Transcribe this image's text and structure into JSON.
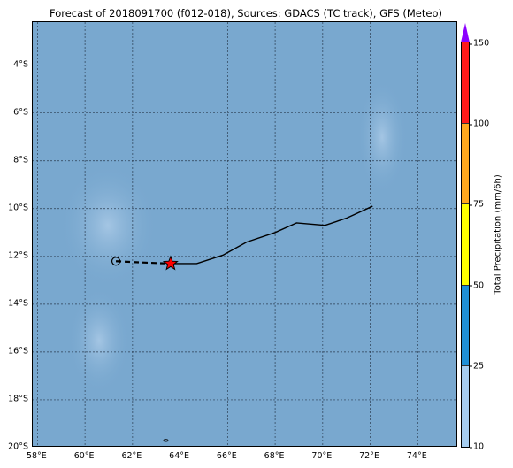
{
  "title": "Forecast of 2018091700 (f012-018), Sources: GDACS (TC track), GFS (Meteo)",
  "map": {
    "lon_range": [
      57.8,
      75.7
    ],
    "lat_range": [
      -20.0,
      -2.2
    ],
    "lat_ticks": [
      {
        "value": -4,
        "label": "4°S"
      },
      {
        "value": -6,
        "label": "6°S"
      },
      {
        "value": -8,
        "label": "8°S"
      },
      {
        "value": -10,
        "label": "10°S"
      },
      {
        "value": -12,
        "label": "12°S"
      },
      {
        "value": -14,
        "label": "14°S"
      },
      {
        "value": -16,
        "label": "16°S"
      },
      {
        "value": -18,
        "label": "18°S"
      },
      {
        "value": -20,
        "label": "20°S"
      }
    ],
    "lon_ticks": [
      {
        "value": 58,
        "label": "58°E"
      },
      {
        "value": 60,
        "label": "60°E"
      },
      {
        "value": 62,
        "label": "62°E"
      },
      {
        "value": 64,
        "label": "64°E"
      },
      {
        "value": 66,
        "label": "66°E"
      },
      {
        "value": 68,
        "label": "68°E"
      },
      {
        "value": 70,
        "label": "70°E"
      },
      {
        "value": 72,
        "label": "72°E"
      },
      {
        "value": 74,
        "label": "74°E"
      }
    ],
    "ocean_color": "#79a8cf",
    "past_track": [
      [
        61.3,
        -12.2
      ],
      [
        62.3,
        -12.25
      ],
      [
        63.6,
        -12.3
      ]
    ],
    "forecast_track": [
      [
        63.6,
        -12.3
      ],
      [
        64.7,
        -12.3
      ],
      [
        65.8,
        -11.95
      ],
      [
        66.8,
        -11.4
      ],
      [
        68.0,
        -11.0
      ],
      [
        68.9,
        -10.6
      ],
      [
        70.1,
        -10.7
      ],
      [
        71.0,
        -10.4
      ],
      [
        72.1,
        -9.9
      ]
    ],
    "start_position": [
      61.3,
      -12.2
    ],
    "current_position": [
      63.6,
      -12.3
    ],
    "track_color": "#000000",
    "marker_color": "#ff0000",
    "island": [
      63.4,
      -19.7
    ]
  },
  "colorbar": {
    "label": "Total Precipitation (mm/6h)",
    "ticks": [
      "10",
      "25",
      "50",
      "75",
      "100",
      "150"
    ],
    "colors": [
      "#a6cdf0",
      "#1f8fd6",
      "#ffff00",
      "#ffa81e",
      "#ff1a1a"
    ],
    "extend_color": "#8b00ff"
  }
}
